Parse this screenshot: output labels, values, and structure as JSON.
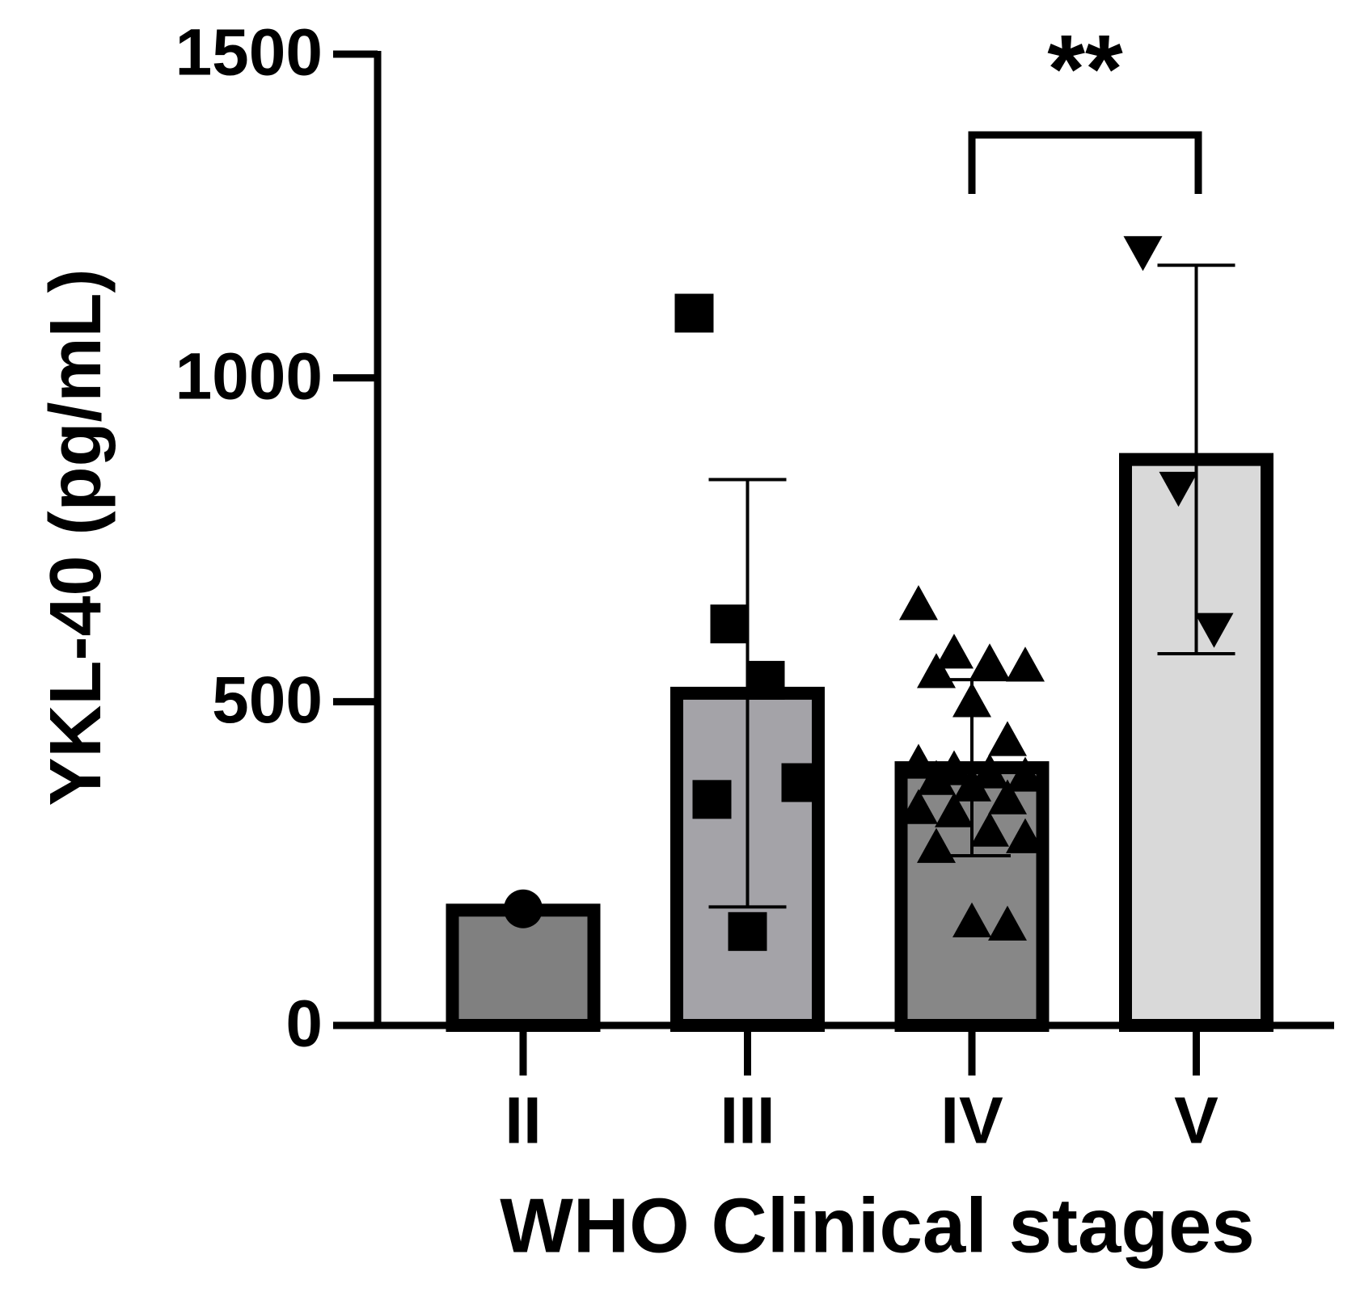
{
  "chart_data": {
    "type": "bar",
    "x_label": "WHO Clinical stages",
    "y_label": "YKL-40 (pg/mL)",
    "categories": [
      "II",
      "III",
      "IV",
      "V"
    ],
    "values": [
      178,
      513,
      398,
      874
    ],
    "errors": [
      null,
      330,
      136,
      300
    ],
    "colors": [
      "#808080",
      "#a4a3a8",
      "#878787",
      "#d9d9d9"
    ],
    "markers": [
      "circle",
      "square",
      "triangle",
      "triangle-down"
    ],
    "points": [
      [
        180
      ],
      [
        1100,
        620,
        533,
        375,
        349,
        145
      ],
      [
        650,
        575,
        560,
        555,
        545,
        500,
        440,
        405,
        395,
        390,
        385,
        380,
        370,
        350,
        335,
        330,
        300,
        290,
        275,
        160,
        155
      ],
      [
        1195,
        831,
        613
      ]
    ],
    "ylim": [
      0,
      1500
    ],
    "yticks": [
      0,
      500,
      1000,
      1500
    ],
    "annotation": "**"
  }
}
